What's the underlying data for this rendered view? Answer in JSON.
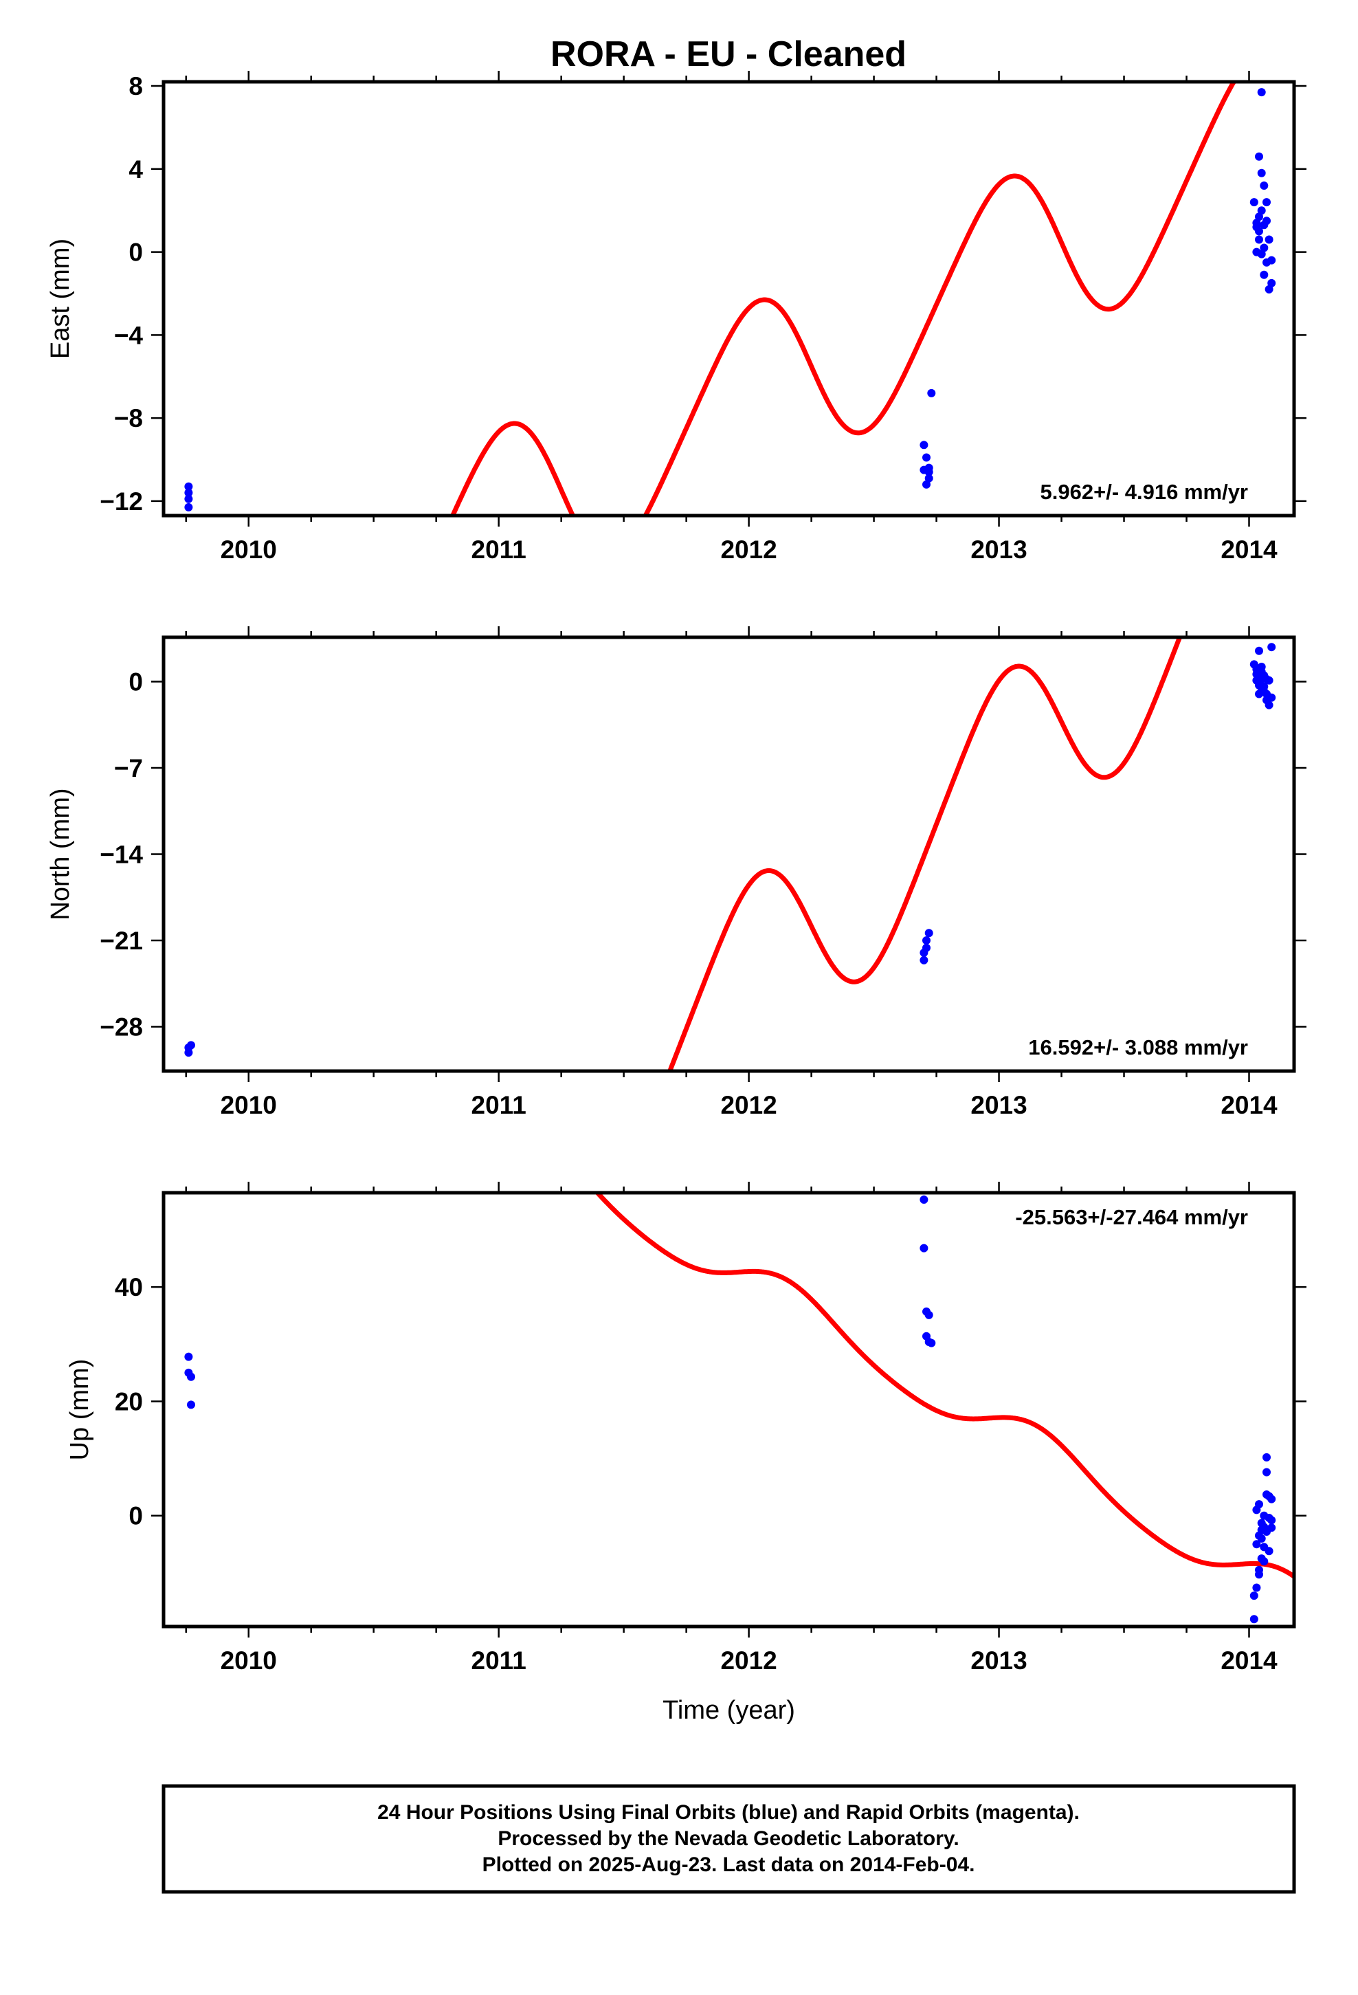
{
  "title": "RORA  - EU - Cleaned",
  "colors": {
    "final_orbits": "#0000ff",
    "model": "#ff0000",
    "axes": "#000000"
  },
  "footer": {
    "lines": [
      "24 Hour Positions Using Final Orbits (blue) and Rapid Orbits (magenta).",
      "Processed by the Nevada Geodetic Laboratory.",
      "Plotted on 2025-Aug-23. Last data on 2014-Feb-04."
    ]
  },
  "chart_data": [
    {
      "type": "scatter",
      "ylabel": "East (mm)",
      "xlabel": "",
      "xlim": [
        2009.66,
        2014.18
      ],
      "ylim": [
        -12.7,
        8.2
      ],
      "xticks": [
        2010,
        2011,
        2012,
        2013,
        2014
      ],
      "xtick_labels": [
        "2010",
        "2011",
        "2012",
        "2013",
        "2014"
      ],
      "yticks": [
        -12,
        -8,
        -4,
        0,
        4,
        8
      ],
      "ytick_labels": [
        "−12",
        "−8",
        "−4",
        "0",
        "4",
        "8"
      ],
      "rate": "5.962+/- 4.916 mm/yr",
      "rate_position": "bottom-right",
      "points": {
        "name": "Final Orbits",
        "x": [
          2009.76,
          2009.76,
          2009.76,
          2009.76,
          2012.7,
          2012.7,
          2012.71,
          2012.71,
          2012.72,
          2012.72,
          2012.72,
          2012.73,
          2014.02,
          2014.03,
          2014.03,
          2014.03,
          2014.04,
          2014.04,
          2014.04,
          2014.04,
          2014.05,
          2014.05,
          2014.05,
          2014.05,
          2014.06,
          2014.06,
          2014.06,
          2014.06,
          2014.07,
          2014.07,
          2014.07,
          2014.08,
          2014.08,
          2014.09,
          2014.09
        ],
        "y": [
          -11.3,
          -11.6,
          -11.9,
          -12.3,
          -9.3,
          -10.5,
          -9.9,
          -11.2,
          -10.6,
          -10.9,
          -10.4,
          -6.8,
          2.4,
          1.4,
          0.0,
          1.2,
          4.6,
          0.6,
          1.7,
          1.0,
          7.7,
          3.8,
          2.0,
          -0.1,
          3.2,
          1.3,
          0.2,
          -1.1,
          2.4,
          1.5,
          -0.5,
          0.6,
          -1.8,
          -0.4,
          -1.5
        ]
      },
      "model": {
        "name": "",
        "trend_per_yr": 5.962,
        "offset_at_2012": -7.0,
        "annual_amp": 4.3,
        "annual_phase": 1.57,
        "semiannual_amp": 0.5,
        "semiannual_phase": 0.0
      }
    },
    {
      "type": "scatter",
      "ylabel": "North (mm)",
      "xlabel": "",
      "xlim": [
        2009.66,
        2014.18
      ],
      "ylim": [
        -31.6,
        3.6
      ],
      "xticks": [
        2010,
        2011,
        2012,
        2013,
        2014
      ],
      "xtick_labels": [
        "2010",
        "2011",
        "2012",
        "2013",
        "2014"
      ],
      "yticks": [
        -28,
        -21,
        -14,
        -7,
        0
      ],
      "ytick_labels": [
        "−28",
        "−21",
        "−14",
        "−7",
        "0"
      ],
      "rate": "16.592+/- 3.088 mm/yr",
      "rate_position": "bottom-right",
      "points": {
        "name": "Final Orbits",
        "x": [
          2009.76,
          2009.76,
          2009.77,
          2012.7,
          2012.7,
          2012.71,
          2012.71,
          2012.72,
          2014.02,
          2014.03,
          2014.03,
          2014.03,
          2014.04,
          2014.04,
          2014.04,
          2014.04,
          2014.05,
          2014.05,
          2014.05,
          2014.05,
          2014.06,
          2014.06,
          2014.06,
          2014.06,
          2014.07,
          2014.07,
          2014.07,
          2014.08,
          2014.08,
          2014.09,
          2014.09
        ],
        "y": [
          -29.7,
          -30.1,
          -29.5,
          -22.0,
          -22.6,
          -21.6,
          -21.0,
          -20.4,
          1.4,
          0.6,
          0.1,
          1.0,
          0.6,
          2.5,
          -0.3,
          -1.0,
          0.8,
          0.2,
          -0.5,
          1.2,
          0.5,
          -0.4,
          -0.8,
          0.3,
          -1.0,
          0.2,
          -1.5,
          0.1,
          -1.9,
          2.8,
          -1.3
        ]
      },
      "model": {
        "name": "",
        "trend_per_yr": 16.592,
        "offset_at_2012": -24.0,
        "annual_amp": 7.5,
        "annual_phase": 1.57,
        "semiannual_amp": 0.9,
        "semiannual_phase": 0.0
      }
    },
    {
      "type": "scatter",
      "ylabel": "Up (mm)",
      "xlabel": "Time (year)",
      "xlim": [
        2009.66,
        2014.18
      ],
      "ylim": [
        -19.4,
        56.5
      ],
      "xticks": [
        2010,
        2011,
        2012,
        2013,
        2014
      ],
      "xtick_labels": [
        "2010",
        "2011",
        "2012",
        "2013",
        "2014"
      ],
      "yticks": [
        0,
        20,
        40
      ],
      "ytick_labels": [
        "0",
        "20",
        "40"
      ],
      "rate": "-25.563+/-27.464 mm/yr",
      "rate_position": "top-right",
      "points": {
        "name": "Final Orbits",
        "x": [
          2009.76,
          2009.76,
          2009.77,
          2009.77,
          2012.7,
          2012.7,
          2012.71,
          2012.71,
          2012.72,
          2012.72,
          2012.73,
          2014.02,
          2014.02,
          2014.03,
          2014.03,
          2014.03,
          2014.04,
          2014.04,
          2014.04,
          2014.04,
          2014.05,
          2014.05,
          2014.05,
          2014.05,
          2014.06,
          2014.06,
          2014.06,
          2014.06,
          2014.07,
          2014.07,
          2014.07,
          2014.07,
          2014.08,
          2014.08,
          2014.08,
          2014.09,
          2014.09,
          2014.09
        ],
        "y": [
          27.8,
          25.0,
          24.3,
          19.4,
          55.3,
          46.8,
          35.7,
          31.4,
          35.1,
          30.4,
          30.2,
          -18.1,
          -14.0,
          -5.0,
          -12.6,
          1.0,
          -9.5,
          2.0,
          -3.5,
          -10.3,
          -2.5,
          -7.5,
          -4.0,
          -1.3,
          0.0,
          -2.0,
          -5.5,
          -8.0,
          10.2,
          7.6,
          3.7,
          -2.8,
          3.4,
          -0.4,
          -6.2,
          2.9,
          -0.8,
          -2.1
        ]
      },
      "model": {
        "name": "",
        "trend_per_yr": -25.563,
        "offset_at_2012": 40.9,
        "annual_amp": 3.8,
        "annual_phase": 0.5,
        "semiannual_amp": 0.5,
        "semiannual_phase": 0.0
      }
    }
  ]
}
